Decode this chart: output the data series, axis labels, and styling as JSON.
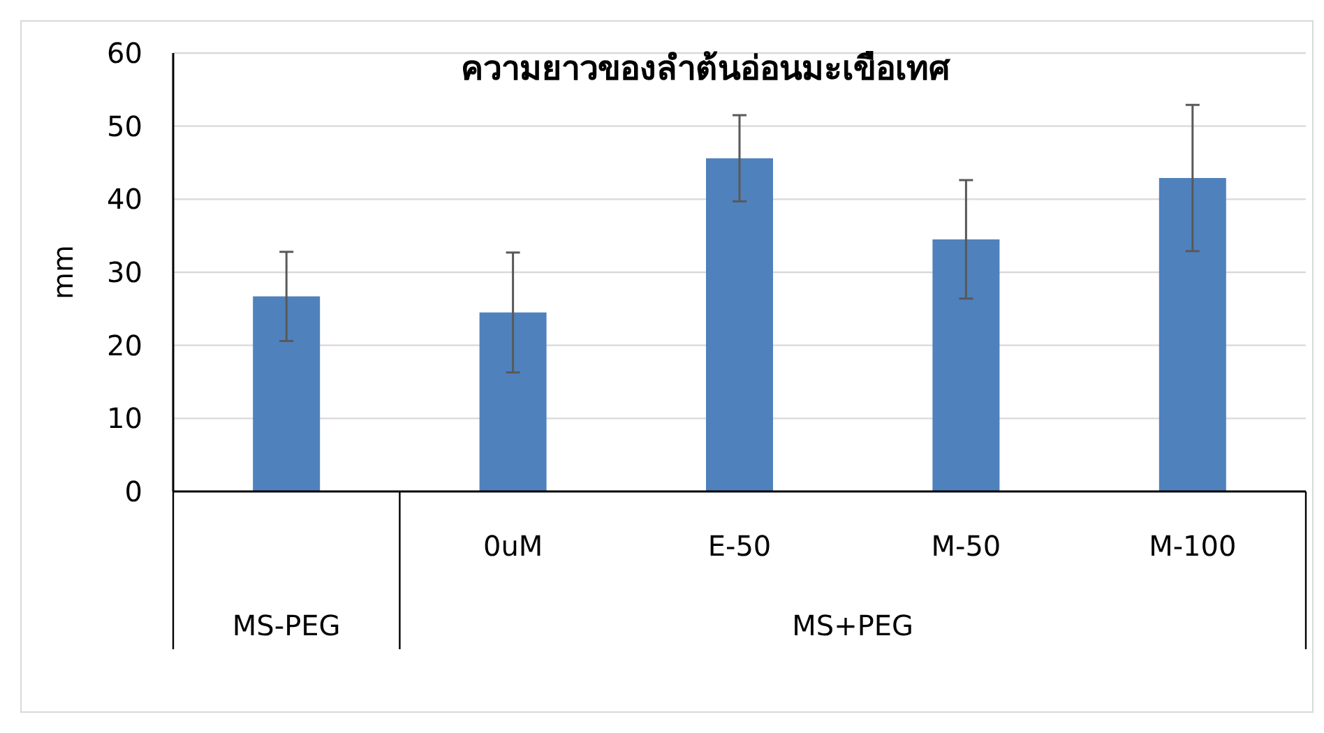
{
  "chart_data": {
    "type": "bar",
    "title": "ความยาวของลำต้นอ่อนมะเขือเทศ",
    "ylabel": "mm",
    "categories": [
      null,
      "0uM",
      "E-50",
      "M-50",
      "M-100"
    ],
    "values": [
      26.7,
      24.5,
      45.6,
      34.5,
      42.9
    ],
    "errors": [
      6.1,
      8.2,
      5.9,
      8.1,
      10
    ],
    "color": "#4f81bd",
    "ylim": [
      0,
      60
    ],
    "yticks": [
      0,
      10,
      20,
      30,
      40,
      50,
      60
    ],
    "grid": "y",
    "annotations": [
      "MS-PEG",
      "MS+PEG"
    ]
  }
}
